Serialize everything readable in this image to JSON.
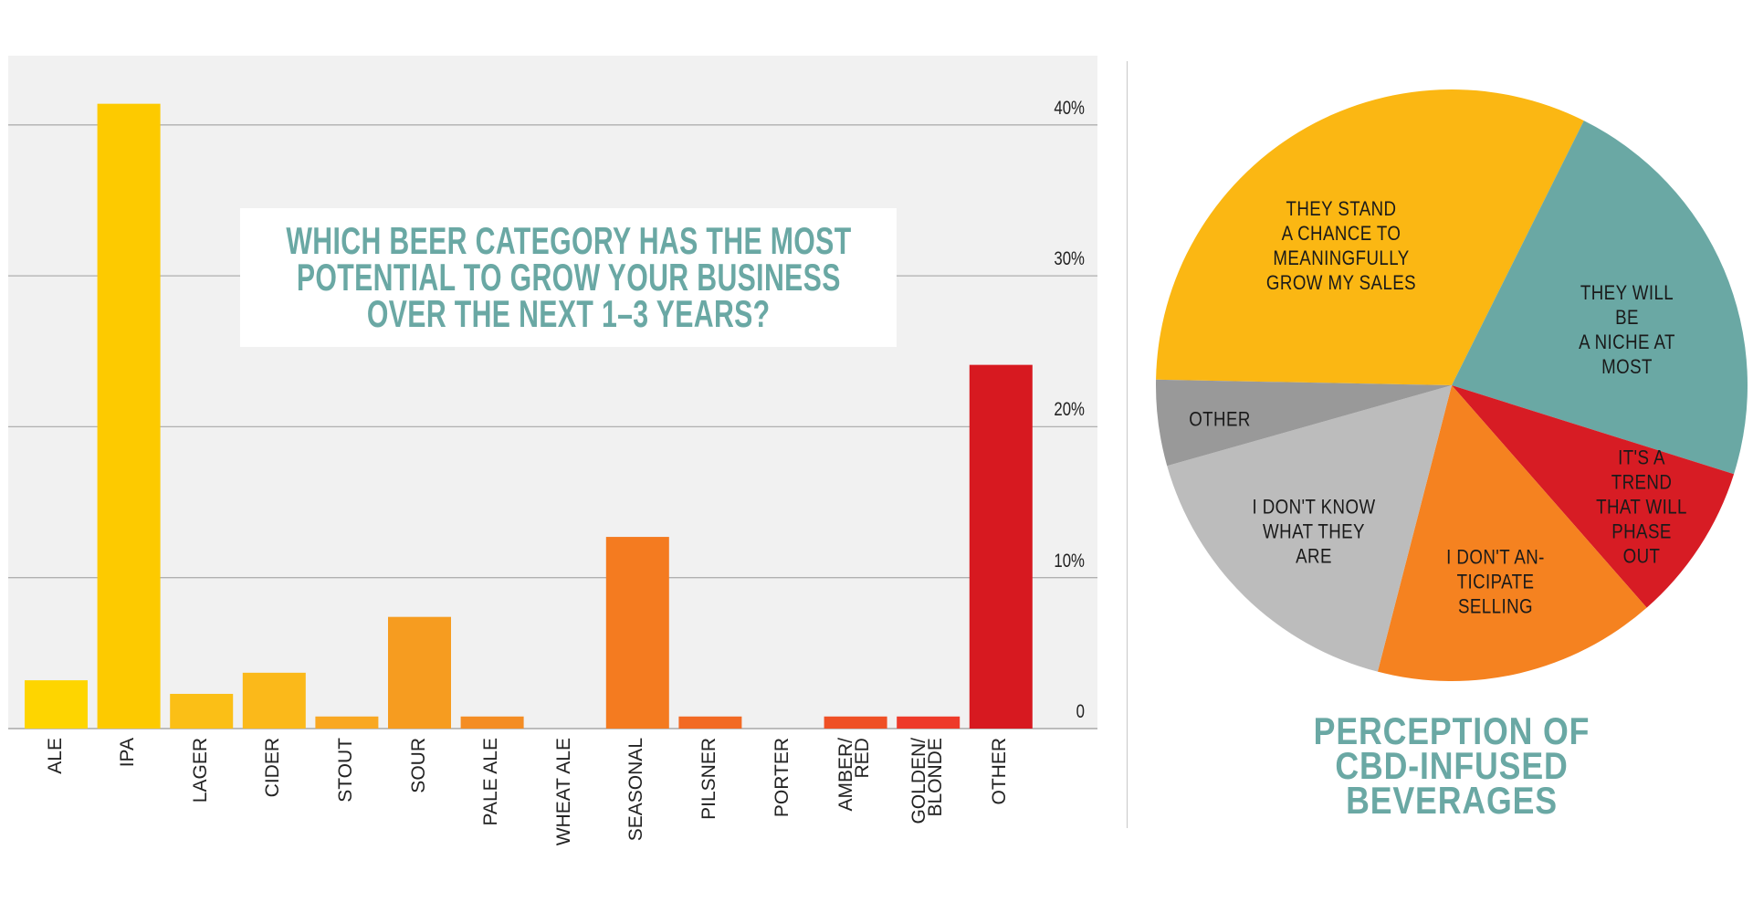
{
  "chart_data": [
    {
      "type": "bar",
      "title": "WHICH BEER CATEGORY HAS THE MOST POTENTIAL TO GROW YOUR BUSINESS OVER THE NEXT 1–3 YEARS?",
      "title_lines": [
        "WHICH BEER CATEGORY HAS THE MOST",
        "POTENTIAL TO GROW YOUR BUSINESS",
        "OVER THE NEXT 1–3 YEARS?"
      ],
      "categories": [
        "ALE",
        "IPA",
        "LAGER",
        "CIDER",
        "STOUT",
        "SOUR",
        "PALE ALE",
        "WHEAT ALE",
        "SEASONAL",
        "PILSNER",
        "PORTER",
        "AMBER/\nRED",
        "GOLDEN/\nBLONDE",
        "OTHER"
      ],
      "values": [
        3.2,
        41.4,
        2.3,
        3.7,
        0.8,
        7.4,
        0.8,
        0,
        12.7,
        0.8,
        0,
        0.8,
        0.8,
        24.1
      ],
      "colors": [
        "#fed500",
        "#fdca00",
        "#fbbf16",
        "#fbb91a",
        "#f9a822",
        "#f69c20",
        "#f48d24",
        "#f48d24",
        "#f47b20",
        "#f26a24",
        "#f05a25",
        "#ef5025",
        "#ee3a2a",
        "#d71920"
      ],
      "ylim": [
        0,
        45
      ],
      "yticks": [
        0,
        10,
        20,
        30,
        40
      ],
      "ytick_labels": [
        "0",
        "10%",
        "20%",
        "30%",
        "40%"
      ],
      "grid": true,
      "background": "#f1f1f1",
      "xlabel": "",
      "ylabel": ""
    },
    {
      "type": "pie",
      "title": "PERCEPTION OF CBD-INFUSED BEVERAGES",
      "title_lines": [
        "PERCEPTION OF",
        "CBD-INFUSED",
        "BEVERAGES"
      ],
      "slices": [
        {
          "label": "THEY STAND\nA CHANCE TO\nMEANINGFULLY\nGROW MY SALES",
          "value": 32.1,
          "color": "#fbb713"
        },
        {
          "label": "THEY WILL BE\nA NICHE AT\nMOST",
          "value": 22.5,
          "color": "#6aa8a4"
        },
        {
          "label": "IT'S A TREND\nTHAT WILL\nPHASE OUT",
          "value": 8.7,
          "color": "#d71c24"
        },
        {
          "label": "I DON'T AN-\nTICIPATE\nSELLING",
          "value": 15.5,
          "color": "#f58220"
        },
        {
          "label": "I DON'T KNOW\nWHAT THEY\nARE",
          "value": 16.6,
          "color": "#bcbcbc"
        },
        {
          "label": "OTHER",
          "value": 4.7,
          "color": "#999999"
        }
      ]
    }
  ],
  "accent_color": "#6aa8a4"
}
